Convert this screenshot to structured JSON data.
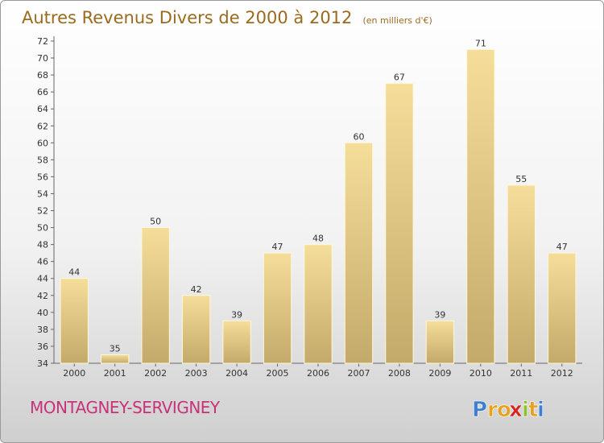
{
  "chart_data": {
    "type": "bar",
    "title": "Autres Revenus Divers de 2000 à 2012",
    "subtitle": "(en milliers d'€)",
    "categories": [
      "2000",
      "2001",
      "2002",
      "2003",
      "2004",
      "2005",
      "2006",
      "2007",
      "2008",
      "2009",
      "2010",
      "2011",
      "2012"
    ],
    "values": [
      44,
      35,
      50,
      42,
      39,
      47,
      48,
      60,
      67,
      39,
      71,
      55,
      47
    ],
    "ylim": [
      34,
      72
    ],
    "ytick_step": 2,
    "grid": false,
    "bar_color_light": "#f5dd9a",
    "bar_color_dark": "#c4aa6a"
  },
  "commune": "MONTAGNEY-SERVIGNEY",
  "logo": {
    "letters": [
      "P",
      "r",
      "o",
      "x",
      "i",
      "t",
      "i"
    ],
    "colors": [
      "#3a7fd0",
      "#e8a11c",
      "#e8a11c",
      "#d8231e",
      "#8fbf2e",
      "#e8a11c",
      "#3a7fd0"
    ]
  }
}
